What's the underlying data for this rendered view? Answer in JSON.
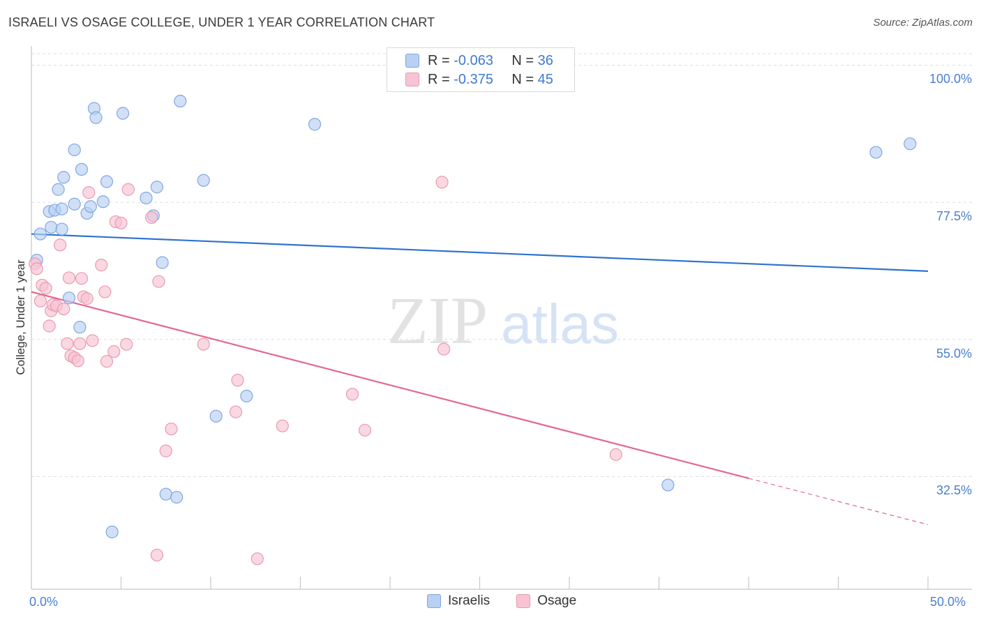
{
  "title": "ISRAELI VS OSAGE COLLEGE, UNDER 1 YEAR CORRELATION CHART",
  "source": "Source: ZipAtlas.com",
  "legend_top": [
    {
      "r_label": "R =",
      "r_value": "-0.063",
      "n_label": "N =",
      "n_value": "36"
    },
    {
      "r_label": "R =",
      "r_value": "-0.375",
      "n_label": "N =",
      "n_value": "45"
    }
  ],
  "legend_bottom": {
    "israelis": "Israelis",
    "osage": "Osage"
  },
  "colors": {
    "israelis_fill": "#b8d0f2",
    "israelis_stroke": "#7fa8e0",
    "israelis_line": "#2f73cf",
    "osage_fill": "#f8c3d3",
    "osage_stroke": "#e99ab2",
    "osage_line": "#e36791"
  },
  "watermark": {
    "zip": "ZIP",
    "atlas": "atlas"
  },
  "chart_data": {
    "type": "scatter",
    "title": "ISRAELI VS OSAGE COLLEGE, UNDER 1 YEAR CORRELATION CHART",
    "xlabel": "",
    "ylabel": "College, Under 1 year",
    "xlim": [
      0,
      50
    ],
    "ylim": [
      14,
      102
    ],
    "x_tick_labels": [
      "0.0%",
      "50.0%"
    ],
    "y_ticks": [
      32.5,
      55.0,
      77.5,
      100.0
    ],
    "y_tick_labels": [
      "32.5%",
      "55.0%",
      "77.5%",
      "100.0%"
    ],
    "series": [
      {
        "name": "Israelis",
        "r": -0.063,
        "n": 36,
        "trend": {
          "x": [
            0,
            50
          ],
          "y": [
            72.3,
            66.2
          ]
        },
        "points": [
          [
            0.3,
            68.0
          ],
          [
            0.5,
            72.3
          ],
          [
            1.0,
            76.0
          ],
          [
            1.1,
            73.4
          ],
          [
            1.3,
            76.2
          ],
          [
            1.5,
            79.6
          ],
          [
            1.7,
            73.1
          ],
          [
            1.7,
            76.4
          ],
          [
            1.8,
            81.6
          ],
          [
            2.1,
            61.8
          ],
          [
            2.4,
            86.1
          ],
          [
            2.4,
            77.2
          ],
          [
            2.7,
            57.0
          ],
          [
            2.8,
            82.9
          ],
          [
            3.1,
            75.7
          ],
          [
            3.3,
            76.8
          ],
          [
            3.5,
            92.9
          ],
          [
            3.6,
            91.4
          ],
          [
            4.0,
            77.6
          ],
          [
            4.2,
            80.9
          ],
          [
            4.5,
            23.4
          ],
          [
            5.1,
            92.1
          ],
          [
            6.4,
            78.2
          ],
          [
            6.8,
            75.3
          ],
          [
            7.0,
            80.0
          ],
          [
            7.3,
            67.6
          ],
          [
            7.5,
            29.6
          ],
          [
            8.1,
            29.1
          ],
          [
            8.3,
            94.1
          ],
          [
            9.6,
            81.1
          ],
          [
            10.3,
            42.4
          ],
          [
            12.0,
            45.7
          ],
          [
            15.8,
            90.3
          ],
          [
            35.5,
            31.1
          ],
          [
            47.1,
            85.7
          ],
          [
            49.0,
            87.1
          ]
        ]
      },
      {
        "name": "Osage",
        "r": -0.375,
        "n": 45,
        "trend": {
          "x": [
            0,
            40
          ],
          "y": [
            62.8,
            32.2
          ]
        },
        "trend_dashed": {
          "x": [
            40,
            50
          ],
          "y": [
            32.2,
            24.6
          ]
        },
        "points": [
          [
            0.2,
            67.4
          ],
          [
            0.3,
            66.6
          ],
          [
            0.5,
            61.3
          ],
          [
            0.6,
            63.9
          ],
          [
            0.8,
            63.4
          ],
          [
            1.0,
            57.2
          ],
          [
            1.1,
            59.7
          ],
          [
            1.2,
            60.7
          ],
          [
            1.4,
            60.5
          ],
          [
            1.6,
            70.5
          ],
          [
            1.8,
            60.0
          ],
          [
            2.0,
            54.3
          ],
          [
            2.1,
            65.1
          ],
          [
            2.2,
            52.3
          ],
          [
            2.4,
            52.0
          ],
          [
            2.6,
            51.5
          ],
          [
            2.7,
            54.3
          ],
          [
            2.8,
            65.0
          ],
          [
            2.9,
            62.0
          ],
          [
            3.1,
            61.7
          ],
          [
            3.2,
            79.1
          ],
          [
            3.4,
            54.8
          ],
          [
            3.9,
            67.2
          ],
          [
            4.1,
            62.8
          ],
          [
            4.2,
            51.4
          ],
          [
            4.6,
            53.0
          ],
          [
            4.7,
            74.3
          ],
          [
            5.0,
            74.1
          ],
          [
            5.3,
            54.2
          ],
          [
            5.4,
            79.6
          ],
          [
            6.7,
            75.0
          ],
          [
            7.0,
            19.6
          ],
          [
            7.1,
            64.5
          ],
          [
            7.5,
            36.7
          ],
          [
            7.8,
            40.3
          ],
          [
            9.6,
            54.2
          ],
          [
            11.4,
            43.1
          ],
          [
            11.5,
            48.3
          ],
          [
            12.6,
            19.0
          ],
          [
            14.0,
            40.8
          ],
          [
            17.9,
            46.0
          ],
          [
            18.6,
            40.1
          ],
          [
            23.0,
            53.4
          ],
          [
            22.9,
            80.8
          ],
          [
            32.6,
            36.1
          ]
        ]
      }
    ]
  }
}
